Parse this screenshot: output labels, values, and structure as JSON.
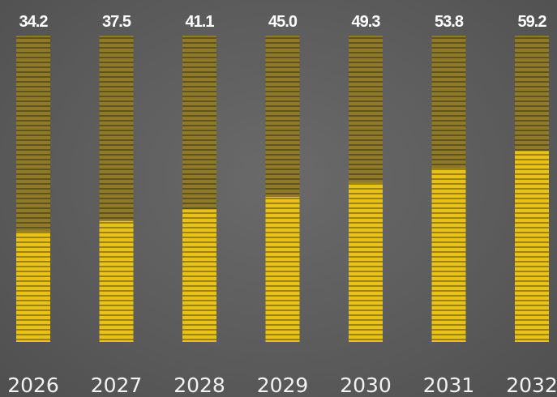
{
  "chart_data": {
    "type": "bar",
    "categories": [
      "2026",
      "2027",
      "2028",
      "2029",
      "2030",
      "2031",
      "2032"
    ],
    "values": [
      34.2,
      37.5,
      41.1,
      45.0,
      49.3,
      53.8,
      59.2
    ],
    "value_labels": [
      "34.2",
      "37.5",
      "41.1",
      "45.0",
      "49.3",
      "53.8",
      "59.2"
    ],
    "title": "",
    "xlabel": "",
    "ylabel": "",
    "ylim": [
      0,
      95
    ],
    "grid": false,
    "legend": "none",
    "colors": {
      "bar_fill": "#e8c21a",
      "bar_track": "#8f7a2a",
      "stripe": "#6b5a15",
      "value_text": "#ffffff",
      "axis_text": "#f2f2f2",
      "background": "#5d5d5d"
    }
  }
}
